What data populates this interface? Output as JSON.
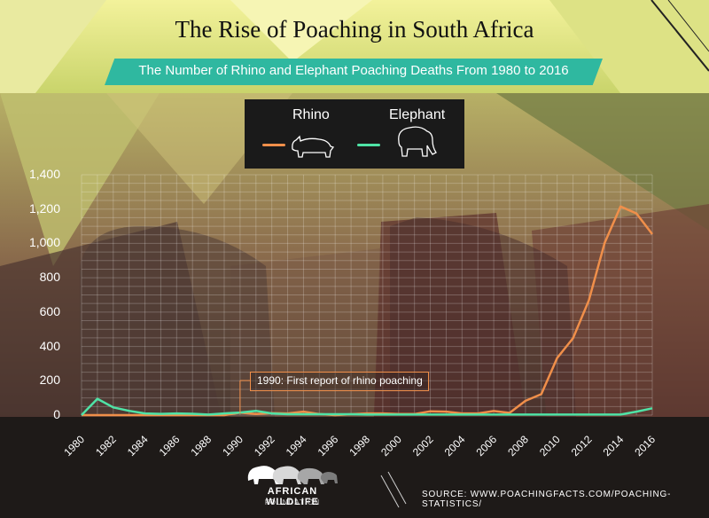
{
  "title": "The Rise of Poaching in South Africa",
  "subtitle": "The Number of Rhino and Elephant Poaching Deaths From 1980 to 2016",
  "legend": {
    "rhino_label": "Rhino",
    "elephant_label": "Elephant",
    "rhino_icon": "rhino-icon",
    "elephant_icon": "elephant-icon"
  },
  "annotation": "1990: First report of rhino poaching",
  "source": "SOURCE: WWW.POACHINGFACTS.COM/POACHING-STATISTICS/",
  "logo": {
    "name": "AFRICAN WILDLIFE",
    "sub": "FOUNDATION"
  },
  "colors": {
    "rhino": "#f08f4a",
    "elephant": "#4fe3a6",
    "subtitle_bar": "#2fb8a0"
  },
  "chart_data": {
    "type": "line",
    "x": [
      1980,
      1981,
      1982,
      1983,
      1984,
      1985,
      1986,
      1987,
      1988,
      1989,
      1990,
      1991,
      1992,
      1993,
      1994,
      1995,
      1996,
      1997,
      1998,
      1999,
      2000,
      2001,
      2002,
      2003,
      2004,
      2005,
      2006,
      2007,
      2008,
      2009,
      2010,
      2011,
      2012,
      2013,
      2014,
      2015,
      2016
    ],
    "x_tick_labels": [
      "1980",
      "1982",
      "1984",
      "1986",
      "1988",
      "1990",
      "1992",
      "1994",
      "1996",
      "1998",
      "2000",
      "2002",
      "2004",
      "2006",
      "2008",
      "2010",
      "2012",
      "2014",
      "2016"
    ],
    "ylim": [
      0,
      1400
    ],
    "y_tick_labels": [
      "0",
      "200",
      "400",
      "600",
      "800",
      "1,000",
      "1,200",
      "1,400"
    ],
    "series": [
      {
        "name": "Rhino",
        "color": "#f08f4a",
        "values": [
          0,
          0,
          0,
          0,
          0,
          0,
          0,
          0,
          0,
          0,
          14,
          6,
          12,
          10,
          20,
          6,
          0,
          5,
          10,
          10,
          6,
          6,
          22,
          20,
          10,
          10,
          24,
          13,
          83,
          122,
          333,
          448,
          668,
          1004,
          1215,
          1175,
          1054
        ]
      },
      {
        "name": "Elephant",
        "color": "#4fe3a6",
        "values": [
          0,
          95,
          45,
          25,
          10,
          7,
          10,
          8,
          3,
          10,
          15,
          25,
          10,
          5,
          5,
          5,
          5,
          5,
          3,
          3,
          3,
          3,
          3,
          3,
          3,
          3,
          3,
          3,
          3,
          3,
          3,
          3,
          3,
          3,
          3,
          20,
          40
        ]
      }
    ],
    "annotations": [
      {
        "x": 1990,
        "text": "1990: First report of rhino poaching"
      }
    ],
    "grid": true,
    "legend": "top-center"
  }
}
